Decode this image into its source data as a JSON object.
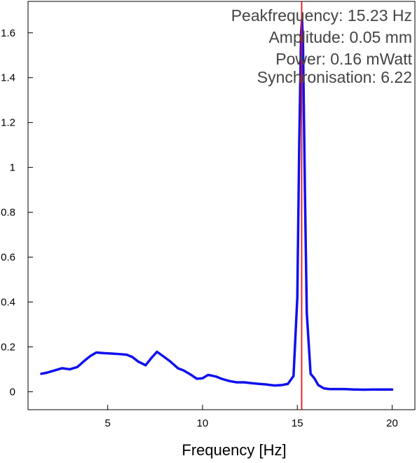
{
  "chart_data": {
    "type": "line",
    "xlabel": "Frequency [Hz]",
    "ylabel": "",
    "xlim": [
      0.8,
      21.2
    ],
    "ylim": [
      -0.08,
      1.74
    ],
    "xticks": [
      5,
      10,
      15,
      20
    ],
    "yticks": [
      0,
      0.2,
      0.4,
      0.6,
      0.8,
      1,
      1.2,
      1.4,
      1.6
    ],
    "grid": false,
    "series": [
      {
        "color": "#1010ee",
        "x": [
          1.5,
          1.8,
          2.2,
          2.6,
          3.0,
          3.4,
          3.8,
          4.1,
          4.4,
          4.8,
          5.2,
          5.6,
          6.0,
          6.3,
          6.6,
          7.0,
          7.3,
          7.6,
          7.9,
          8.3,
          8.7,
          9.0,
          9.4,
          9.7,
          10.0,
          10.3,
          10.7,
          11.0,
          11.4,
          11.8,
          12.2,
          12.6,
          13.0,
          13.4,
          13.8,
          14.2,
          14.5,
          14.8,
          15.0,
          15.1,
          15.2,
          15.25,
          15.3,
          15.4,
          15.5,
          15.7,
          15.9,
          16.1,
          16.4,
          16.7,
          17.0,
          17.5,
          18.0,
          18.5,
          19.0,
          19.5,
          20.0
        ],
        "y": [
          0.08,
          0.085,
          0.095,
          0.105,
          0.1,
          0.11,
          0.14,
          0.16,
          0.175,
          0.172,
          0.17,
          0.168,
          0.165,
          0.155,
          0.135,
          0.118,
          0.15,
          0.178,
          0.16,
          0.135,
          0.105,
          0.095,
          0.075,
          0.058,
          0.06,
          0.075,
          0.068,
          0.058,
          0.048,
          0.042,
          0.042,
          0.038,
          0.035,
          0.032,
          0.028,
          0.03,
          0.035,
          0.07,
          0.42,
          1.1,
          1.6,
          1.66,
          1.55,
          0.9,
          0.35,
          0.08,
          0.06,
          0.03,
          0.015,
          0.012,
          0.012,
          0.012,
          0.01,
          0.009,
          0.01,
          0.01,
          0.01
        ]
      }
    ],
    "marker_line": {
      "x": 15.23,
      "color": "#ee1111"
    }
  },
  "info": {
    "peakfrequency": "Peakfrequency: 15.23 Hz",
    "amplitude": "Amplitude: 0.05 mm",
    "power": "Power: 0.16 mWatt",
    "synchronisation": "Synchronisation: 6.22"
  }
}
